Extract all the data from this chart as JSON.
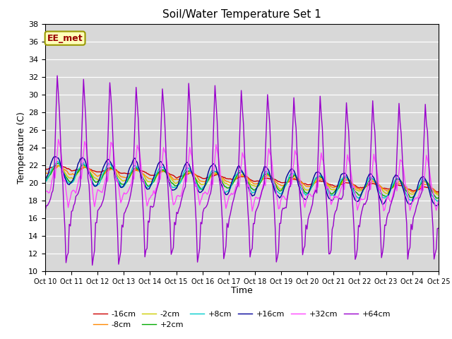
{
  "title": "Soil/Water Temperature Set 1",
  "xlabel": "Time",
  "ylabel": "Temperature (C)",
  "ylim": [
    10,
    38
  ],
  "xlim": [
    0,
    360
  ],
  "annotation_label": "EE_met",
  "bg_color": "#d8d8d8",
  "fig_bg": "#ffffff",
  "series_order": [
    "-16cm",
    "-8cm",
    "-2cm",
    "+2cm",
    "+8cm",
    "+16cm",
    "+32cm",
    "+64cm"
  ],
  "series": {
    "-16cm": {
      "color": "#cc0000",
      "lw": 1.0
    },
    "-8cm": {
      "color": "#ff8800",
      "lw": 1.0
    },
    "-2cm": {
      "color": "#cccc00",
      "lw": 1.0
    },
    "+2cm": {
      "color": "#00aa00",
      "lw": 1.0
    },
    "+8cm": {
      "color": "#00cccc",
      "lw": 1.0
    },
    "+16cm": {
      "color": "#000099",
      "lw": 1.0
    },
    "+32cm": {
      "color": "#ff44ff",
      "lw": 1.0
    },
    "+64cm": {
      "color": "#9900cc",
      "lw": 1.0
    }
  },
  "xtick_labels": [
    "Oct 10",
    "Oct 11",
    "Oct 12",
    "Oct 13",
    "Oct 14",
    "Oct 15",
    "Oct 16",
    "Oct 17",
    "Oct 18",
    "Oct 19",
    "Oct 20",
    "Oct 21",
    "Oct 22",
    "Oct 23",
    "Oct 24",
    "Oct 25"
  ],
  "legend_row1": [
    "-16cm",
    "-8cm",
    "-2cm",
    "+2cm",
    "+8cm",
    "+16cm"
  ],
  "legend_row2": [
    "+32cm",
    "+64cm"
  ]
}
